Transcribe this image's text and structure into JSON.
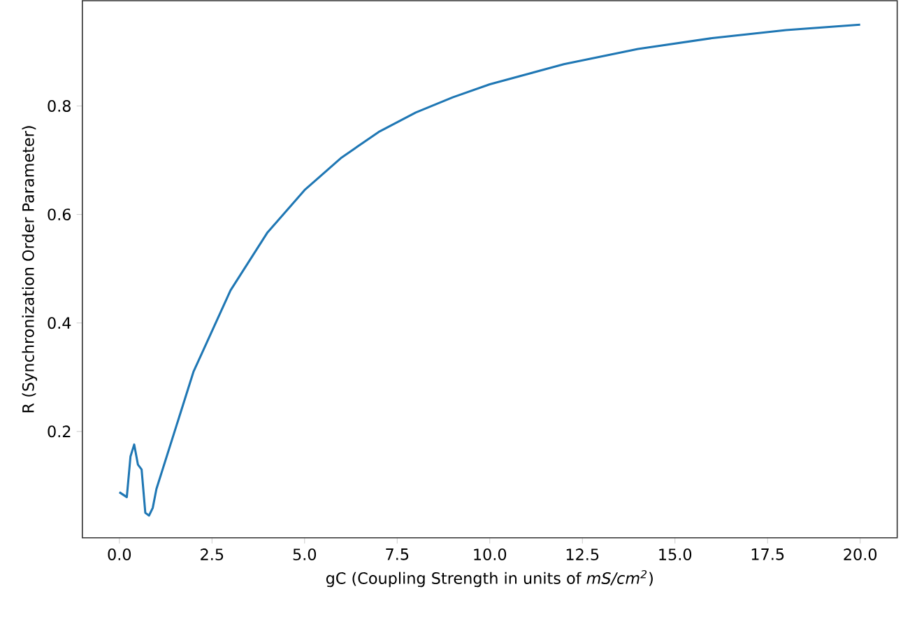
{
  "chart_data": {
    "type": "line",
    "xlabel": "gC (Coupling Strength in units of *mS/cm$^{2}$*)",
    "ylabel": "R (Synchronization Order Parameter)",
    "series": [
      {
        "color": "#1f77b4",
        "x": [
          0,
          0.2,
          0.3,
          0.4,
          0.5,
          0.6,
          0.7,
          0.8,
          0.9,
          1.0,
          2,
          3,
          4,
          5,
          6,
          7,
          8,
          9,
          10,
          12,
          14,
          16,
          18,
          20
        ],
        "values": [
          0.088,
          0.079,
          0.154,
          0.176,
          0.139,
          0.13,
          0.05,
          0.045,
          0.059,
          0.094,
          0.31,
          0.46,
          0.567,
          0.645,
          0.705,
          0.752,
          0.788,
          0.816,
          0.84,
          0.877,
          0.905,
          0.925,
          0.94,
          0.95
        ]
      }
    ],
    "xlim": [
      -1,
      21
    ],
    "ylim": [
      0.004,
      0.994
    ],
    "xticks": [
      {
        "value": 0,
        "label": "0.0"
      },
      {
        "value": 2.5,
        "label": "2.5"
      },
      {
        "value": 5,
        "label": "5.0"
      },
      {
        "value": 7.5,
        "label": "7.5"
      },
      {
        "value": 10,
        "label": "10.0"
      },
      {
        "value": 12.5,
        "label": "12.5"
      },
      {
        "value": 15,
        "label": "15.0"
      },
      {
        "value": 17.5,
        "label": "17.5"
      },
      {
        "value": 20,
        "label": "20.0"
      }
    ],
    "yticks": [
      0.2,
      0.4,
      0.6,
      0.8
    ],
    "grid": false,
    "legend": false
  }
}
